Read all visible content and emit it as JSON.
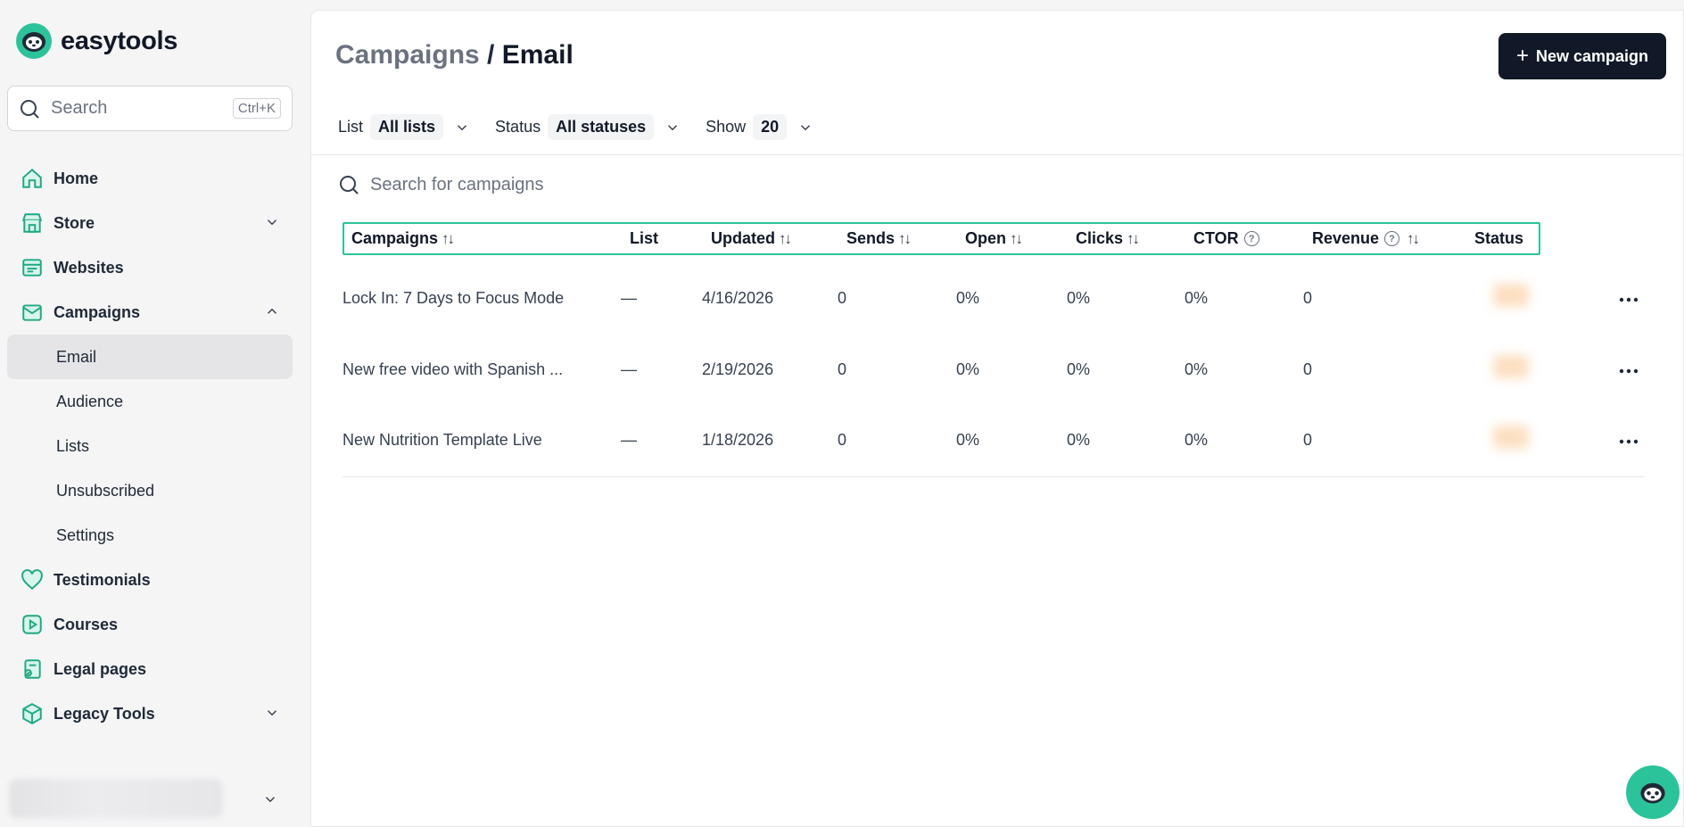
{
  "brand": {
    "name": "easytools"
  },
  "search": {
    "label": "Search",
    "shortcut": "Ctrl+K"
  },
  "nav": {
    "home": "Home",
    "store": "Store",
    "websites": "Websites",
    "campaigns": "Campaigns",
    "sub": [
      "Email",
      "Audience",
      "Lists",
      "Unsubscribed",
      "Settings"
    ],
    "testimonials": "Testimonials",
    "courses": "Courses",
    "legal": "Legal pages",
    "legacy": "Legacy Tools"
  },
  "header": {
    "crumb": "Campaigns",
    "sep": " / ",
    "current": "Email",
    "new_button": "New campaign"
  },
  "filters": {
    "list_label": "List",
    "list_value": "All lists",
    "status_label": "Status",
    "status_value": "All statuses",
    "show_label": "Show",
    "show_value": "20"
  },
  "campaign_search": {
    "placeholder": "Search for campaigns"
  },
  "table": {
    "columns": [
      "Campaigns",
      "List",
      "Updated",
      "Sends",
      "Open",
      "Clicks",
      "CTOR",
      "Revenue",
      "Status"
    ],
    "rows": [
      {
        "name": "Lock In: 7 Days to Focus Mode",
        "list": "—",
        "updated": "4/16/2026",
        "sends": "0",
        "open": "0%",
        "clicks": "0%",
        "ctor": "0%",
        "revenue": "0"
      },
      {
        "name": "New free video with Spanish ...",
        "list": "—",
        "updated": "2/19/2026",
        "sends": "0",
        "open": "0%",
        "clicks": "0%",
        "ctor": "0%",
        "revenue": "0"
      },
      {
        "name": "New Nutrition Template Live",
        "list": "—",
        "updated": "1/18/2026",
        "sends": "0",
        "open": "0%",
        "clicks": "0%",
        "ctor": "0%",
        "revenue": "0"
      }
    ]
  },
  "colors": {
    "accent": "#2bc49a",
    "dark": "#111827"
  }
}
